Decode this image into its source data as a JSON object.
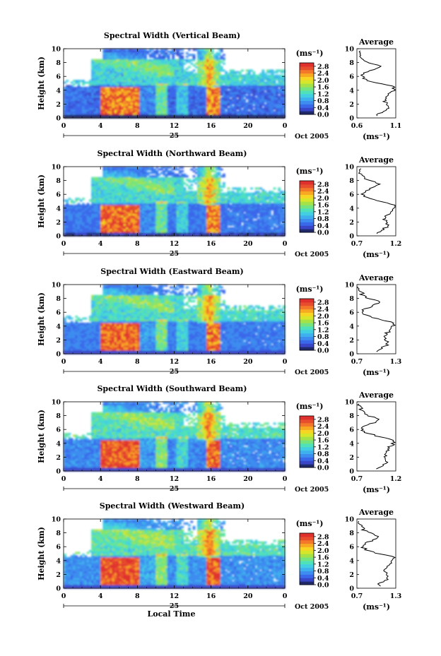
{
  "chart_data": {
    "type": "heatmap",
    "x_axis": {
      "ticks": [
        "0",
        "4",
        "8",
        "12",
        "16",
        "20",
        "0"
      ],
      "day_label": "25",
      "date_label": "Oct 2005",
      "xlabel": "Local Time",
      "range_hours": [
        0,
        24
      ]
    },
    "y_axis": {
      "ylabel": "Height (km)",
      "ticks": [
        "0",
        "2",
        "4",
        "6",
        "8",
        "10"
      ],
      "ylim": [
        0,
        10
      ]
    },
    "colorbar": {
      "unit_label": "(ms⁻¹)",
      "ticks": [
        "0.0",
        "0.4",
        "0.8",
        "1.2",
        "1.6",
        "2.0",
        "2.4",
        "2.8"
      ],
      "range": [
        0,
        3.0
      ],
      "colors": [
        "#202a6a",
        "#3a46c8",
        "#3a68ea",
        "#3d8cef",
        "#3fb0ee",
        "#42cfe2",
        "#4fe1b9",
        "#75e47f",
        "#a4e248",
        "#d6e62a",
        "#f6d623",
        "#f8a922",
        "#f3782a",
        "#e64e2e",
        "#e0302e"
      ]
    },
    "panels": [
      {
        "title": "Spectral Width (Vertical Beam)",
        "avg_title": "Average",
        "avg_xticks": [
          "0.6",
          "1.1"
        ],
        "avg_xlim": [
          0.6,
          1.1
        ],
        "avg_unit": "(ms⁻¹)"
      },
      {
        "title": "Spectral Width (Northward Beam)",
        "avg_title": "Average",
        "avg_xticks": [
          "0.7",
          "1.2"
        ],
        "avg_xlim": [
          0.7,
          1.2
        ],
        "avg_unit": "(ms⁻¹)"
      },
      {
        "title": "Spectral Width (Eastward Beam)",
        "avg_title": "Average",
        "avg_xticks": [
          "0.7",
          "1.3"
        ],
        "avg_xlim": [
          0.7,
          1.3
        ],
        "avg_unit": "(ms⁻¹)"
      },
      {
        "title": "Spectral Width (Southward Beam)",
        "avg_title": "Average",
        "avg_xticks": [
          "0.7",
          "1.2"
        ],
        "avg_xlim": [
          0.7,
          1.2
        ],
        "avg_unit": "(ms⁻¹)"
      },
      {
        "title": "Spectral Width (Westward Beam)",
        "avg_title": "Average",
        "avg_xticks": [
          "0.7",
          "1.3"
        ],
        "avg_xlim": [
          0.7,
          1.3
        ],
        "avg_unit": "(ms⁻¹)"
      }
    ],
    "average_profile": {
      "height_km": [
        0.5,
        1.0,
        1.5,
        2.0,
        2.5,
        3.0,
        3.5,
        4.0,
        4.5,
        5.0,
        5.5,
        6.0,
        6.5,
        7.0,
        7.5,
        8.0,
        8.5,
        9.0,
        9.5
      ],
      "width_frac": [
        0.55,
        0.7,
        0.8,
        0.75,
        0.7,
        0.78,
        0.85,
        0.95,
        0.98,
        0.55,
        0.25,
        0.12,
        0.2,
        0.45,
        0.6,
        0.3,
        0.15,
        0.1,
        0.05
      ]
    }
  }
}
